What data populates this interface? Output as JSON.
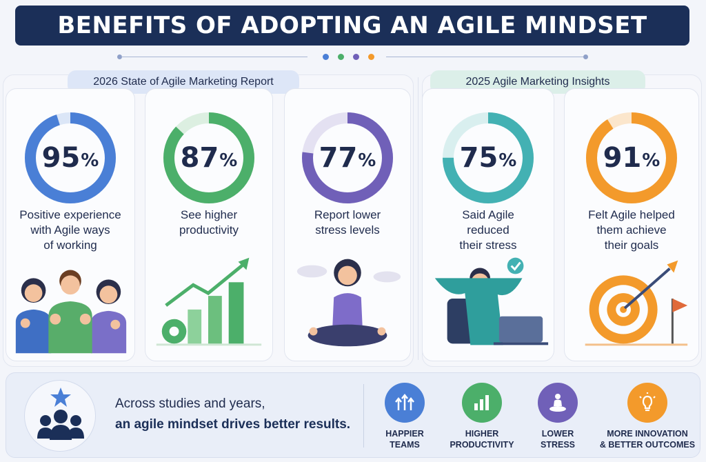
{
  "header": {
    "title": "BENEFITS OF ADOPTING AN AGILE MINDSET"
  },
  "colors": {
    "blue": "#4a7fd6",
    "green": "#4caf6a",
    "purple": "#7060b8",
    "teal": "#43b1b3",
    "orange": "#f39a2b",
    "navy": "#1b2f58"
  },
  "groups": [
    {
      "label": "2026 State of Agile Marketing Report"
    },
    {
      "label": "2025 Agile Marketing Insights"
    }
  ],
  "stats": [
    {
      "value": 95,
      "number": "95",
      "unit": "%",
      "label": "Positive experience\nwith Agile ways\nof working",
      "color": "#4a7fd6",
      "track": "#dbe6f7",
      "illustration": "team-thumbs-up"
    },
    {
      "value": 87,
      "number": "87",
      "unit": "%",
      "label": "See higher\nproductivity",
      "color": "#4caf6a",
      "track": "#dcefe1",
      "illustration": "growth-chart-gear"
    },
    {
      "value": 77,
      "number": "77",
      "unit": "%",
      "label": "Report lower\nstress levels",
      "color": "#7060b8",
      "track": "#e4e1f2",
      "illustration": "meditating-person"
    },
    {
      "value": 75,
      "number": "75",
      "unit": "%",
      "label": "Said Agile\nreduced\ntheir stress",
      "color": "#43b1b3",
      "track": "#d9efef",
      "illustration": "relaxed-person-laptop"
    },
    {
      "value": 91,
      "number": "91",
      "unit": "%",
      "label": "Felt Agile helped\nthem achieve\ntheir goals",
      "color": "#f39a2b",
      "track": "#fbe6cc",
      "illustration": "target-arrow-flag"
    }
  ],
  "summary": {
    "line1": "Across studies and years,",
    "line2": "an agile mindset drives better results.",
    "icon": "team-star-icon"
  },
  "benefits": [
    {
      "label": "HAPPIER\nTEAMS",
      "icon": "arrows-up-icon",
      "color": "#4a7fd6"
    },
    {
      "label": "HIGHER\nPRODUCTIVITY",
      "icon": "bar-chart-icon",
      "color": "#4caf6a"
    },
    {
      "label": "LOWER\nSTRESS",
      "icon": "meditation-icon",
      "color": "#7060b8"
    },
    {
      "label": "MORE INNOVATION\n& BETTER OUTCOMES",
      "icon": "lightbulb-icon",
      "color": "#f39a2b"
    }
  ]
}
